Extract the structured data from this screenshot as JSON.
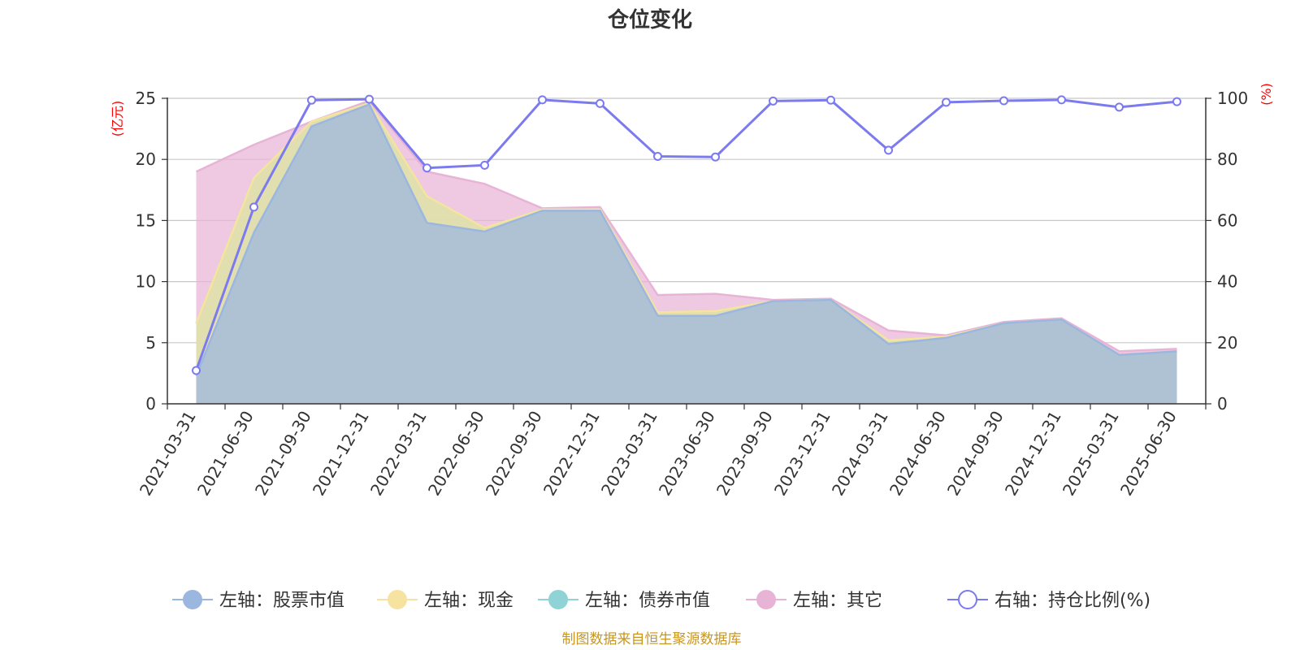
{
  "chart_data": {
    "type": "area",
    "title": "仓位变化",
    "left_axis": {
      "unit": "(亿元)",
      "ylim": [
        0,
        25
      ],
      "ticks": [
        0,
        5,
        10,
        15,
        20,
        25
      ]
    },
    "right_axis": {
      "unit": "(%)",
      "ylim": [
        0,
        100
      ],
      "ticks": [
        0,
        20,
        40,
        60,
        80,
        100
      ]
    },
    "categories": [
      "2021-03-31",
      "2021-06-30",
      "2021-09-30",
      "2021-12-31",
      "2022-03-31",
      "2022-06-30",
      "2022-09-30",
      "2022-12-31",
      "2023-03-31",
      "2023-06-30",
      "2023-09-30",
      "2023-12-31",
      "2024-03-31",
      "2024-06-30",
      "2024-09-30",
      "2024-12-31",
      "2025-03-31",
      "2025-06-30"
    ],
    "stacked_series": [
      {
        "name": "左轴：股票市值",
        "color": "#9bb7e0",
        "values": [
          2.3,
          14.0,
          22.7,
          24.5,
          14.8,
          14.1,
          15.8,
          15.8,
          7.2,
          7.2,
          8.4,
          8.5,
          4.9,
          5.4,
          6.6,
          6.9,
          4.0,
          4.3
        ]
      },
      {
        "name": "左轴：现金",
        "color": "#f7e3a0",
        "values": [
          4.3,
          4.5,
          0.4,
          0.1,
          2.2,
          0.3,
          0.1,
          0.1,
          0.3,
          0.4,
          0.0,
          0.0,
          0.3,
          0.1,
          0.0,
          0.0,
          0.0,
          0.0
        ]
      },
      {
        "name": "左轴：债券市值",
        "color": "#8fd3d6",
        "values": [
          0,
          0,
          0,
          0,
          0,
          0,
          0,
          0,
          0,
          0,
          0,
          0,
          0,
          0,
          0,
          0,
          0,
          0
        ]
      },
      {
        "name": "左轴：其它",
        "color": "#e8b4d6",
        "values": [
          12.4,
          2.7,
          0.0,
          0.2,
          2.0,
          3.6,
          0.1,
          0.2,
          1.4,
          1.4,
          0.1,
          0.1,
          0.8,
          0.1,
          0.1,
          0.1,
          0.3,
          0.2
        ]
      }
    ],
    "line_series": {
      "name": "右轴：持仓比例(%)",
      "color": "#7b7bef",
      "values": [
        10.9,
        64.4,
        99.4,
        99.7,
        77.2,
        78.1,
        99.5,
        98.3,
        81.0,
        80.8,
        99.1,
        99.4,
        83.0,
        98.7,
        99.2,
        99.5,
        97.1,
        98.9
      ]
    },
    "grid": true,
    "legend_position": "bottom"
  },
  "source_note": "制图数据来自恒生聚源数据库"
}
